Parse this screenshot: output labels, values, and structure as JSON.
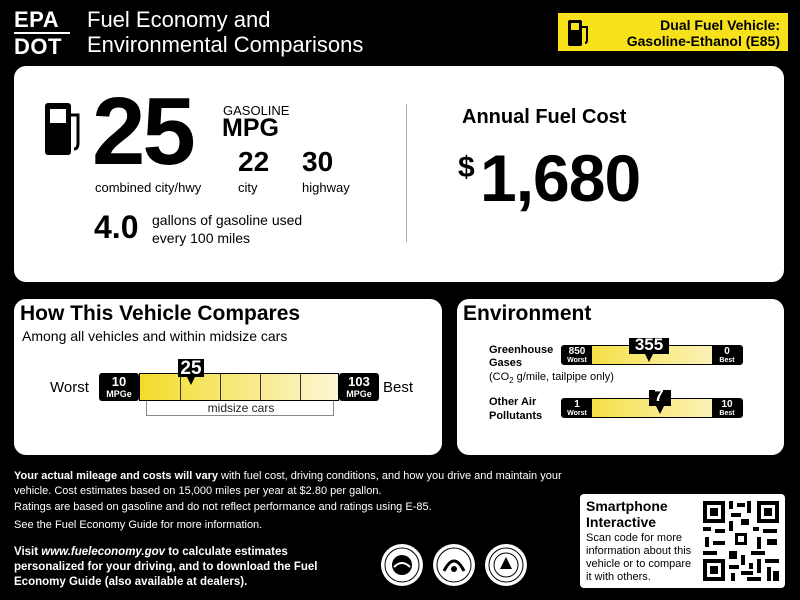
{
  "header": {
    "agency_line1": "EPA",
    "agency_line2": "DOT",
    "title_line1": "Fuel Economy and",
    "title_line2": "Environmental Comparisons",
    "vehicle_type_line1": "Dual Fuel Vehicle:",
    "vehicle_type_line2": "Gasoline-Ethanol (E85)",
    "pump_icon": "fuel-pump-icon"
  },
  "fuel_economy": {
    "fuel_type": "GASOLINE",
    "unit": "MPG",
    "combined": "25",
    "combined_label": "combined city/hwy",
    "city": "22",
    "city_label": "city",
    "highway": "30",
    "highway_label": "highway",
    "gallons_value": "4.0",
    "gallons_line1": "gallons of gasoline used",
    "gallons_line2": "every 100 miles",
    "pump_icon": "fuel-pump-icon"
  },
  "annual_cost": {
    "label": "Annual Fuel Cost",
    "currency": "$",
    "value": "1,680"
  },
  "compare": {
    "title": "How This Vehicle Compares",
    "subtitle": "Among all vehicles and within midsize cars",
    "worst_label": "Worst",
    "best_label": "Best",
    "low_value": "10",
    "low_unit": "MPGe",
    "high_value": "103",
    "high_unit": "MPGe",
    "marker_value": "25",
    "range_label": "midsize cars"
  },
  "environment": {
    "title": "Environment",
    "ghg_label_line1": "Greenhouse",
    "ghg_label_line2": "Gases",
    "ghg_note_prefix": "(CO",
    "ghg_note_sub": "2",
    "ghg_note_suffix": " g/mile, tailpipe only)",
    "ghg_worst_value": "850",
    "ghg_worst_label": "Worst",
    "ghg_best_value": "0",
    "ghg_best_label": "Best",
    "ghg_marker_value": "355",
    "oap_label_line1": "Other Air",
    "oap_label_line2": "Pollutants",
    "oap_worst_value": "1",
    "oap_worst_label": "Worst",
    "oap_best_value": "10",
    "oap_best_label": "Best",
    "oap_marker_value": "7"
  },
  "footer": {
    "p1_bold": "Your actual mileage and costs will vary",
    "p1_rest": " with fuel cost, driving conditions, and how you drive and maintain your vehicle. Cost estimates based on 15,000 miles per year at $2.80 per gallon.",
    "p2": "Ratings are based on gasoline and do not reflect performance and ratings using E-85.",
    "p3": "See the Fuel Economy Guide for more information.",
    "visit_prefix": "Visit ",
    "visit_url": "www.fueleconomy.gov",
    "visit_rest": " to calculate estimates personalized for your driving, and to download the Fuel Economy Guide (also available at dealers).",
    "seal_icons": [
      "epa-seal-icon",
      "dot-seal-icon",
      "doe-seal-icon"
    ]
  },
  "smartphone": {
    "title_line1": "Smartphone",
    "title_line2": "Interactive",
    "description": "Scan code for more information about this vehicle or to compare it with others.",
    "qr_icon": "qr-code-icon"
  },
  "colors": {
    "background": "#000000",
    "panel": "#ffffff",
    "accent_yellow": "#f6e11b",
    "scale_start": "#f3dc2a",
    "scale_end": "#fdf6d4"
  }
}
